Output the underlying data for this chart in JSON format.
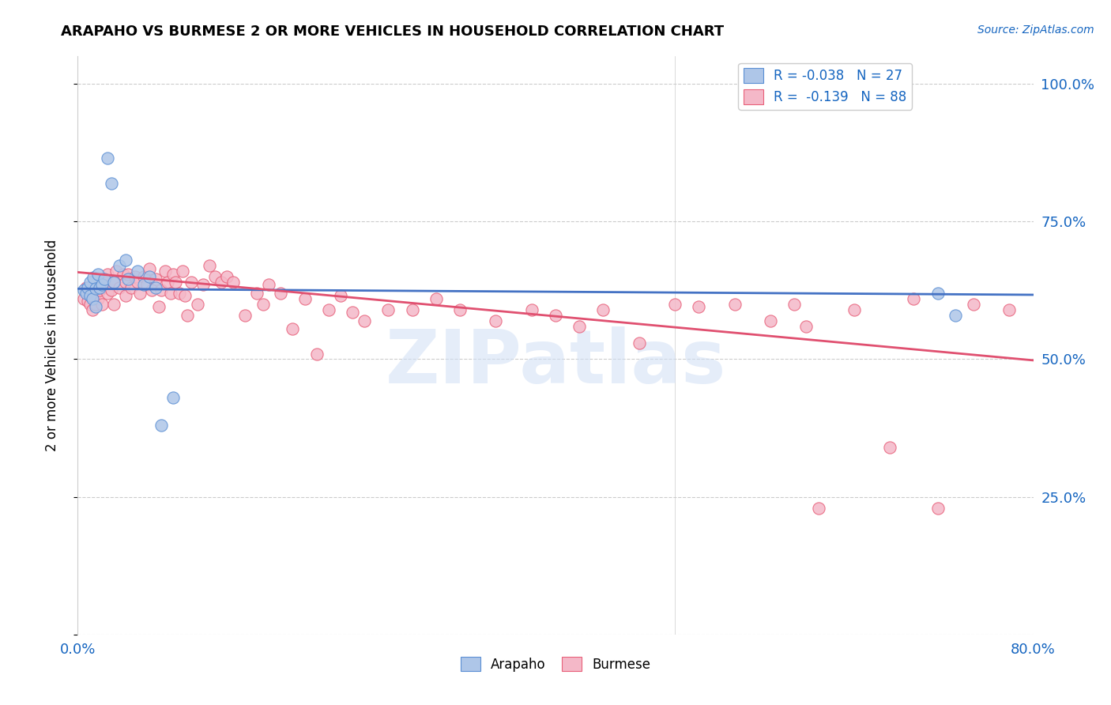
{
  "title": "ARAPAHO VS BURMESE 2 OR MORE VEHICLES IN HOUSEHOLD CORRELATION CHART",
  "source": "Source: ZipAtlas.com",
  "ylabel": "2 or more Vehicles in Household",
  "xlim": [
    0.0,
    0.8
  ],
  "ylim": [
    0.0,
    1.05
  ],
  "yticks": [
    0.0,
    0.25,
    0.5,
    0.75,
    1.0
  ],
  "ytick_labels": [
    "",
    "25.0%",
    "50.0%",
    "75.0%",
    "100.0%"
  ],
  "xticks": [
    0.0,
    0.1,
    0.2,
    0.3,
    0.4,
    0.5,
    0.6,
    0.7,
    0.8
  ],
  "xtick_labels": [
    "0.0%",
    "",
    "",
    "",
    "",
    "",
    "",
    "",
    "80.0%"
  ],
  "arapaho_color": "#aec6e8",
  "burmese_color": "#f4b8c8",
  "arapaho_edge_color": "#5b8fd4",
  "burmese_edge_color": "#e8607a",
  "arapaho_line_color": "#4472c4",
  "burmese_line_color": "#e05070",
  "watermark": "ZIPatlas",
  "ara_line_x0": 0.0,
  "ara_line_y0": 0.628,
  "ara_line_x1": 0.8,
  "ara_line_y1": 0.617,
  "bur_line_x0": 0.0,
  "bur_line_y0": 0.658,
  "bur_line_x1": 0.8,
  "bur_line_y1": 0.498,
  "arapaho_x": [
    0.005,
    0.007,
    0.008,
    0.01,
    0.01,
    0.012,
    0.013,
    0.015,
    0.015,
    0.017,
    0.018,
    0.02,
    0.022,
    0.025,
    0.028,
    0.03,
    0.035,
    0.04,
    0.042,
    0.05,
    0.055,
    0.06,
    0.065,
    0.07,
    0.08,
    0.72,
    0.735
  ],
  "arapaho_y": [
    0.625,
    0.62,
    0.63,
    0.64,
    0.615,
    0.61,
    0.648,
    0.628,
    0.595,
    0.655,
    0.63,
    0.635,
    0.645,
    0.865,
    0.82,
    0.64,
    0.67,
    0.68,
    0.645,
    0.66,
    0.635,
    0.65,
    0.63,
    0.38,
    0.43,
    0.62,
    0.58
  ],
  "burmese_x": [
    0.005,
    0.007,
    0.008,
    0.01,
    0.01,
    0.012,
    0.013,
    0.015,
    0.015,
    0.017,
    0.018,
    0.02,
    0.02,
    0.022,
    0.025,
    0.025,
    0.028,
    0.03,
    0.03,
    0.032,
    0.035,
    0.038,
    0.04,
    0.04,
    0.042,
    0.045,
    0.048,
    0.05,
    0.052,
    0.055,
    0.058,
    0.06,
    0.062,
    0.065,
    0.068,
    0.07,
    0.073,
    0.075,
    0.078,
    0.08,
    0.082,
    0.085,
    0.088,
    0.09,
    0.092,
    0.095,
    0.1,
    0.105,
    0.11,
    0.115,
    0.12,
    0.125,
    0.13,
    0.14,
    0.15,
    0.155,
    0.16,
    0.17,
    0.18,
    0.19,
    0.2,
    0.21,
    0.22,
    0.23,
    0.24,
    0.26,
    0.28,
    0.3,
    0.32,
    0.35,
    0.38,
    0.4,
    0.42,
    0.44,
    0.47,
    0.5,
    0.52,
    0.55,
    0.58,
    0.6,
    0.61,
    0.62,
    0.65,
    0.68,
    0.7,
    0.72,
    0.75,
    0.78
  ],
  "burmese_y": [
    0.61,
    0.63,
    0.605,
    0.625,
    0.6,
    0.59,
    0.615,
    0.62,
    0.6,
    0.61,
    0.625,
    0.6,
    0.63,
    0.64,
    0.62,
    0.655,
    0.625,
    0.6,
    0.64,
    0.66,
    0.63,
    0.655,
    0.615,
    0.64,
    0.655,
    0.63,
    0.65,
    0.64,
    0.62,
    0.65,
    0.635,
    0.665,
    0.625,
    0.645,
    0.595,
    0.625,
    0.66,
    0.64,
    0.62,
    0.655,
    0.64,
    0.62,
    0.66,
    0.615,
    0.58,
    0.64,
    0.6,
    0.635,
    0.67,
    0.65,
    0.64,
    0.65,
    0.64,
    0.58,
    0.62,
    0.6,
    0.635,
    0.62,
    0.555,
    0.61,
    0.51,
    0.59,
    0.615,
    0.585,
    0.57,
    0.59,
    0.59,
    0.61,
    0.59,
    0.57,
    0.59,
    0.58,
    0.56,
    0.59,
    0.53,
    0.6,
    0.595,
    0.6,
    0.57,
    0.6,
    0.56,
    0.23,
    0.59,
    0.34,
    0.61,
    0.23,
    0.6,
    0.59
  ]
}
